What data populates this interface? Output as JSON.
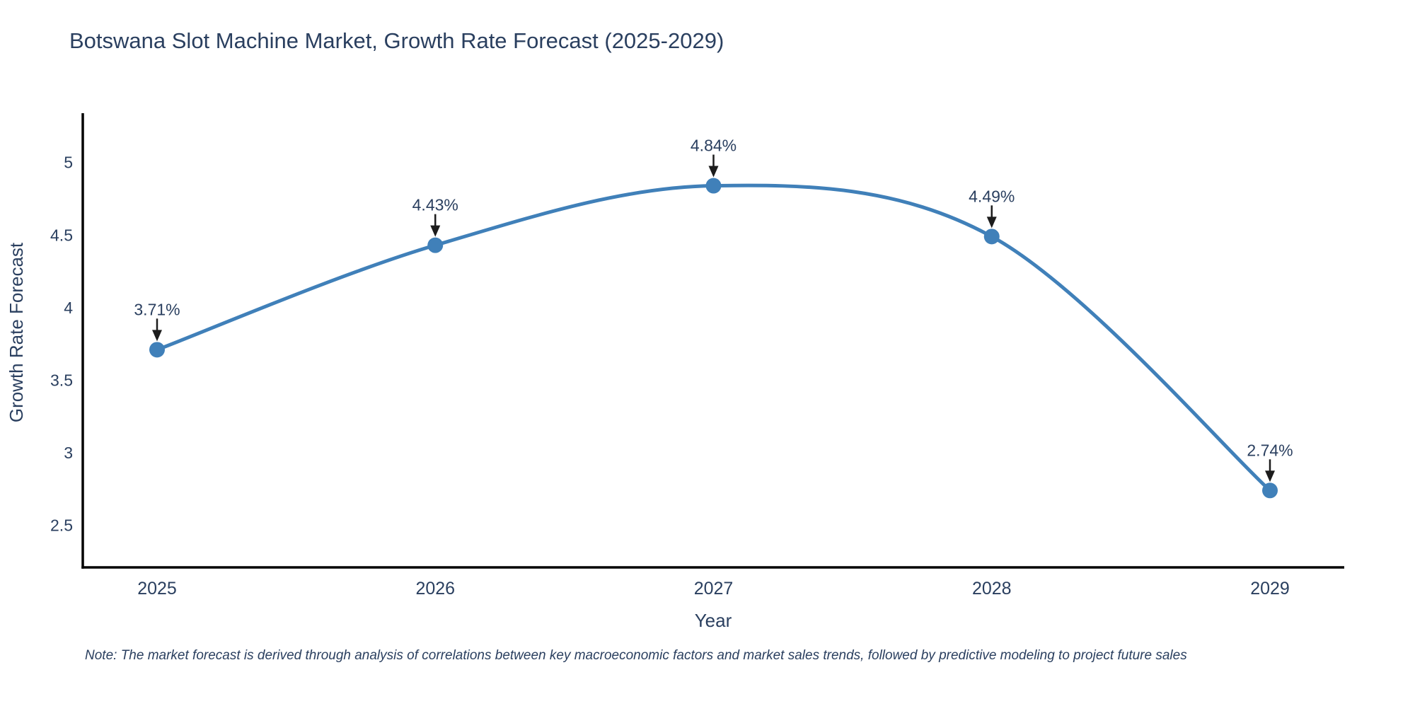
{
  "page": {
    "background": "#ffffff"
  },
  "chart_data": {
    "type": "line",
    "title": "Botswana Slot Machine Market, Growth Rate Forecast (2025-2029)",
    "categories": [
      "2025",
      "2026",
      "2027",
      "2028",
      "2029"
    ],
    "series": [
      {
        "name": "Growth Rate Forecast",
        "values": [
          3.71,
          4.43,
          4.84,
          4.49,
          2.74
        ]
      }
    ],
    "point_labels": [
      "3.71%",
      "4.43%",
      "4.84%",
      "4.49%",
      "2.74%"
    ],
    "xlabel": "Year",
    "ylabel": "Growth Rate Forecast",
    "yticks": [
      2.5,
      3,
      3.5,
      4,
      4.5,
      5
    ],
    "ylim": [
      2.21,
      5.34
    ],
    "line_shape": "spline",
    "grid": false,
    "legend_position": "none",
    "colors": {
      "line": "#4080b9",
      "marker": "#4080b9",
      "axis": "#000000",
      "text": "#2a3f5f",
      "arrow": "#1c1c1c"
    },
    "note": "Note: The market forecast is derived through analysis of correlations between key macroeconomic factors and market sales trends, followed by predictive modeling to project future sales"
  }
}
